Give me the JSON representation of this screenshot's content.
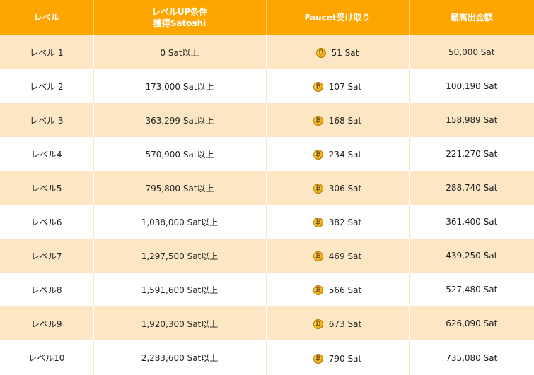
{
  "header": {
    "level": "レベル",
    "condition_line1": "レベルUP条件",
    "condition_line2": "獲得Satoshi",
    "faucet": "Faucet受け取り",
    "max_withdraw": "最高出金額"
  },
  "coin_glyph": "₿",
  "colors": {
    "header_bg": "#ffa500",
    "odd_row_bg": "#fde6c4",
    "even_row_bg": "#ffffff",
    "coin": "#f3b51a"
  },
  "rows": [
    {
      "level": "レベル 1",
      "condition": "0 Sat以上",
      "faucet": "51 Sat",
      "max": "50,000 Sat"
    },
    {
      "level": "レベル 2",
      "condition": "173,000 Sat以上",
      "faucet": "107 Sat",
      "max": "100,190 Sat"
    },
    {
      "level": "レベル 3",
      "condition": "363,299 Sat以上",
      "faucet": "168 Sat",
      "max": "158,989 Sat"
    },
    {
      "level": "レベル4",
      "condition": "570,900 Sat以上",
      "faucet": "234 Sat",
      "max": "221,270 Sat"
    },
    {
      "level": "レベル5",
      "condition": "795,800 Sat以上",
      "faucet": "306 Sat",
      "max": "288,740 Sat"
    },
    {
      "level": "レベル6",
      "condition": "1,038,000 Sat以上",
      "faucet": "382 Sat",
      "max": "361,400 Sat"
    },
    {
      "level": "レベル7",
      "condition": "1,297,500 Sat以上",
      "faucet": "469 Sat",
      "max": "439,250 Sat"
    },
    {
      "level": "レベル8",
      "condition": "1,591,600 Sat以上",
      "faucet": "566 Sat",
      "max": "527,480 Sat"
    },
    {
      "level": "レベル9",
      "condition": "1,920,300 Sat以上",
      "faucet": "673 Sat",
      "max": "626,090 Sat"
    },
    {
      "level": "レベル10",
      "condition": "2,283,600 Sat以上",
      "faucet": "790 Sat",
      "max": "735,080 Sat"
    }
  ]
}
